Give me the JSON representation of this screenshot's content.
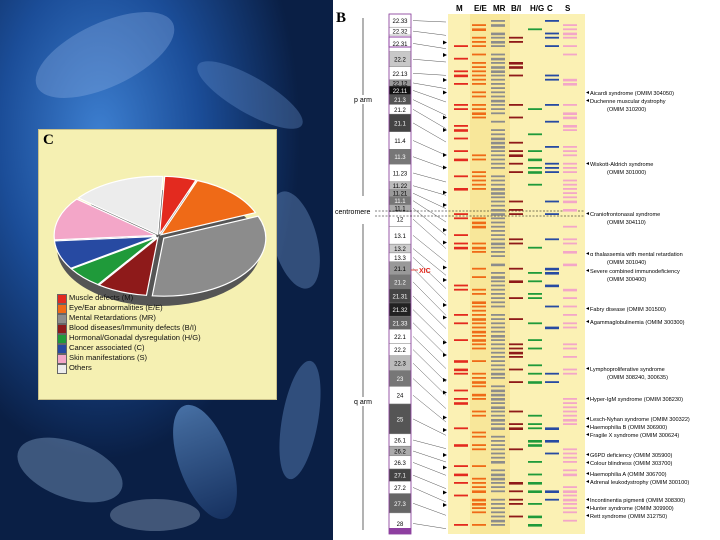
{
  "panel_b": {
    "label": "B",
    "columns": [
      "M",
      "E/E",
      "MR",
      "B/I",
      "H/G",
      "C",
      "S"
    ],
    "arm_labels": {
      "p": "p arm",
      "centromere": "centromere",
      "q": "q arm"
    },
    "xic": "XIC",
    "bands": [
      "22.33",
      "22.32",
      "22.31",
      "22.2",
      "22.13",
      "22.12",
      "22.11",
      "21.3",
      "21.2",
      "21.1",
      "11.4",
      "11.3",
      "11.23",
      "11.22",
      "11.21",
      "11.1",
      "11.1",
      "12",
      "13.1",
      "13.2",
      "13.3",
      "21.1",
      "21.2",
      "21.31",
      "21.32",
      "21.33",
      "22.1",
      "22.2",
      "22.3",
      "23",
      "24",
      "25",
      "26.1",
      "26.2",
      "26.3",
      "27.1",
      "27.2",
      "27.3",
      "28"
    ],
    "diseases": [
      {
        "name": "Aicardi syndrome (OMIM 304050)",
        "indent": false
      },
      {
        "name": "Duchenne muscular dystrophy",
        "indent": false
      },
      {
        "name": "(OMIM 310200)",
        "indent": true
      },
      {
        "name": "Wiskott-Aldrich syndrome",
        "indent": false
      },
      {
        "name": "(OMIM 301000)",
        "indent": true
      },
      {
        "name": "Craniofrontonasal syndrome",
        "indent": false
      },
      {
        "name": "(OMIM 304110)",
        "indent": true
      },
      {
        "name": "α thalassemia with mental retardation",
        "indent": false
      },
      {
        "name": "(OMIM 301040)",
        "indent": true
      },
      {
        "name": "Severe combined immunodeficiency",
        "indent": false
      },
      {
        "name": "(OMIM 300400)",
        "indent": true
      },
      {
        "name": "Fabry disease (OMIM 301500)",
        "indent": false
      },
      {
        "name": "Agammaglobulinemia (OMIM 300300)",
        "indent": false
      },
      {
        "name": "Lymphoproliferative syndrome",
        "indent": false
      },
      {
        "name": "(OMIM 308240, 300635)",
        "indent": true
      },
      {
        "name": "Hyper-IgM syndrome (OMIM 308230)",
        "indent": false
      },
      {
        "name": "Lesch-Nyhan syndrome (OMIM 300322)",
        "indent": false
      },
      {
        "name": "Haemophilia B (OMIM 306900)",
        "indent": false
      },
      {
        "name": "Fragile X syndrome (OMIM 300624)",
        "indent": false
      },
      {
        "name": "G6PD deficiency (OMIM 305900)",
        "indent": false
      },
      {
        "name": "Colour blindness (OMIM 303700)",
        "indent": false
      },
      {
        "name": "Haemophilia A (OMIM 306700)",
        "indent": false
      },
      {
        "name": "Adrenal leukodystrophy (OMIM 300100)",
        "indent": false
      },
      {
        "name": "Incontinentia pigmenti (OMIM 308300)",
        "indent": false
      },
      {
        "name": "Hunter syndrome (OMIM 309900)",
        "indent": false
      },
      {
        "name": "Rett syndrome (OMIM 312750)",
        "indent": false
      }
    ]
  },
  "panel_c": {
    "label": "C",
    "legend": [
      {
        "text": "Muscle defects (M)",
        "color": "#e32a1f",
        "value": 5
      },
      {
        "text": "Eye/Ear abnormalities (E/E)",
        "color": "#ef6a17",
        "value": 13
      },
      {
        "text": "Mental Retardations (MR)",
        "color": "#8c8c8c",
        "value": 33
      },
      {
        "text": "Blood diseases/Immunity defects (B/I)",
        "color": "#8e1a1a",
        "value": 8
      },
      {
        "text": "Hormonal/Gonadal dysregulation (H/G)",
        "color": "#1f9a3a",
        "value": 6
      },
      {
        "text": "Cancer associated (C)",
        "color": "#274aa2",
        "value": 8
      },
      {
        "text": "Skin manifestations (S)",
        "color": "#f3a6c8",
        "value": 12
      },
      {
        "text": "Others",
        "color": "#ececec",
        "value": 15
      }
    ]
  },
  "colors": {
    "M": "#e32a1f",
    "E/E": "#ef6a17",
    "MR": "#8c8c8c",
    "B/I": "#8e1a1a",
    "H/G": "#1f9a3a",
    "C": "#274aa2",
    "S": "#f3a6c8",
    "purple": "#8e3fa0"
  }
}
